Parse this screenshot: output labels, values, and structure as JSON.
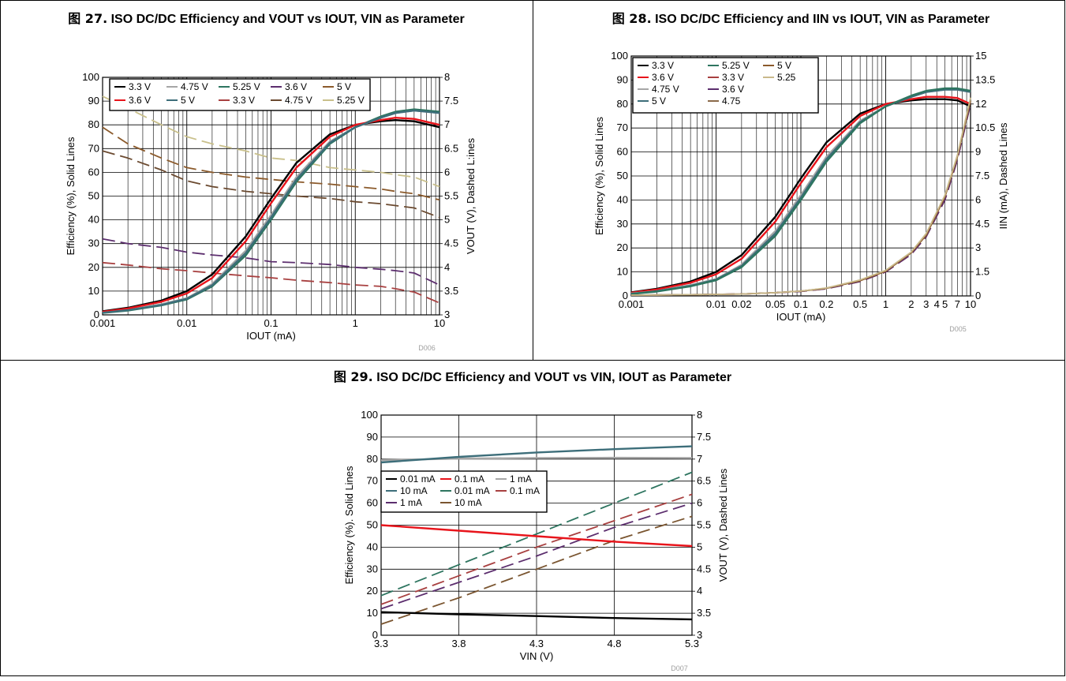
{
  "figures": [
    {
      "caption_prefix": "图 27.",
      "title": "ISO DC/DC Efficiency and VOUT vs IOUT, VIN as Parameter"
    },
    {
      "caption_prefix": "图 28.",
      "title": "ISO DC/DC Efficiency and IIN vs IOUT, VIN as Parameter"
    },
    {
      "caption_prefix": "图 29.",
      "title": "ISO DC/DC Efficiency and VOUT vs VIN, IOUT as Parameter"
    }
  ],
  "chart_data": [
    {
      "type": "line",
      "title": "ISO DC/DC Efficiency and VOUT vs IOUT, VIN as Parameter",
      "xlabel": "IOUT (mA)",
      "ylabel": "Efficiency (%), Solid Lines",
      "y2label": "VOUT (V), Dashed L:ines",
      "x_scale": "log",
      "xlim": [
        0.001,
        10
      ],
      "ylim": [
        0,
        100
      ],
      "y2lim": [
        3,
        8
      ],
      "x_ticks": [
        0.001,
        0.01,
        0.1,
        1,
        10
      ],
      "x_tick_labels": [
        "0.001",
        "0.01",
        "0.1",
        "1",
        "10"
      ],
      "y_ticks": [
        0,
        10,
        20,
        30,
        40,
        50,
        60,
        70,
        80,
        90,
        100
      ],
      "y_tick_labels": [
        "0",
        "10",
        "20",
        "30",
        "40",
        "50",
        "60",
        "70",
        "80",
        "90",
        "100"
      ],
      "y2_ticks": [
        3,
        3.5,
        4,
        4.5,
        5,
        5.5,
        6,
        6.5,
        7,
        7.5,
        8
      ],
      "y2_tick_labels": [
        "3",
        "3.5",
        "4",
        "4.5",
        "5",
        "5.5",
        "6",
        "6.5",
        "7",
        "7.5",
        "8"
      ],
      "grid": true,
      "legend_position": "top-left",
      "code_label": "D006",
      "x": [
        0.001,
        0.002,
        0.005,
        0.01,
        0.02,
        0.05,
        0.1,
        0.2,
        0.5,
        1,
        2,
        3,
        5,
        10
      ],
      "series": [
        {
          "name": "3.3 V",
          "axis": "left",
          "style": "solid",
          "color": "#000000",
          "values": [
            1.5,
            3,
            6,
            10,
            17,
            33,
            49,
            64,
            76,
            80,
            81.5,
            82,
            81.5,
            79
          ]
        },
        {
          "name": "4.75 V",
          "axis": "left",
          "style": "solid",
          "color": "#a6a6a6",
          "values": [
            1,
            2,
            4.5,
            7,
            13,
            27,
            42,
            58,
            73,
            79,
            83,
            85,
            86,
            85
          ]
        },
        {
          "name": "5.25 V",
          "axis": "left",
          "style": "solid",
          "color": "#2e7560",
          "values": [
            0.8,
            1.8,
            4,
            6.5,
            12,
            25,
            40,
            56,
            72,
            79,
            83.5,
            85.5,
            86.5,
            85.5
          ]
        },
        {
          "name": "3.6 V",
          "axis": "right",
          "style": "dashed",
          "color": "#5c2e6e",
          "values": [
            4.6,
            4.5,
            4.42,
            4.32,
            4.26,
            4.2,
            4.12,
            4.1,
            4.06,
            4.0,
            3.96,
            3.93,
            3.88,
            3.63
          ]
        },
        {
          "name": "5 V",
          "axis": "right",
          "style": "dashed",
          "color": "#8b5a2b",
          "values": [
            6.95,
            6.6,
            6.3,
            6.1,
            6.0,
            5.9,
            5.85,
            5.8,
            5.75,
            5.7,
            5.65,
            5.6,
            5.55,
            5.42
          ]
        },
        {
          "name": "3.6 V",
          "axis": "left",
          "style": "solid",
          "color": "#e8141b",
          "values": [
            1.3,
            2.7,
            5.5,
            9,
            15.5,
            31,
            47,
            62,
            75,
            80,
            82,
            83,
            82.5,
            80
          ]
        },
        {
          "name": "5 V",
          "axis": "left",
          "style": "solid",
          "color": "#3d6e7a",
          "values": [
            0.9,
            2,
            4.2,
            6.8,
            12.5,
            26,
            41,
            57,
            72.5,
            79,
            83,
            85,
            86,
            85
          ]
        },
        {
          "name": "3.3 V",
          "axis": "right",
          "style": "dashed",
          "color": "#a84040",
          "values": [
            4.1,
            4.05,
            3.97,
            3.93,
            3.88,
            3.82,
            3.78,
            3.73,
            3.68,
            3.63,
            3.6,
            3.55,
            3.48,
            3.25
          ]
        },
        {
          "name": "4.75 V",
          "axis": "right",
          "style": "dashed",
          "color": "#6b4a30",
          "values": [
            6.45,
            6.3,
            6.05,
            5.82,
            5.7,
            5.6,
            5.55,
            5.5,
            5.45,
            5.38,
            5.34,
            5.3,
            5.25,
            5.05
          ]
        },
        {
          "name": "5.25 V",
          "axis": "right",
          "style": "dashed",
          "color": "#c9c08b",
          "values": [
            7.6,
            7.35,
            7.0,
            6.75,
            6.6,
            6.45,
            6.3,
            6.25,
            6.1,
            6.05,
            6.0,
            5.95,
            5.9,
            5.7
          ]
        }
      ]
    },
    {
      "type": "line",
      "title": "ISO DC/DC Efficiency and IIN vs IOUT, VIN as Parameter",
      "xlabel": "IOUT (mA)",
      "ylabel": "Efficiency (%), Solid Lines",
      "y2label": "IIN (mA), Dashed Lines",
      "x_scale": "log",
      "xlim": [
        0.001,
        10
      ],
      "ylim": [
        0,
        100
      ],
      "y2lim": [
        0,
        15
      ],
      "x_ticks": [
        0.001,
        0.01,
        0.02,
        0.05,
        0.1,
        0.2,
        0.5,
        1,
        2,
        3,
        4,
        5,
        7,
        10
      ],
      "x_tick_labels": [
        "0.001",
        "0.01",
        "0.02",
        "0.05",
        "0.1",
        "0.2",
        "0.5",
        "1",
        "2",
        "3",
        "4",
        "5",
        "7",
        "10"
      ],
      "y_ticks": [
        0,
        10,
        20,
        30,
        40,
        50,
        60,
        70,
        80,
        90,
        100
      ],
      "y_tick_labels": [
        "0",
        "10",
        "20",
        "30",
        "40",
        "50",
        "60",
        "70",
        "80",
        "90",
        "100"
      ],
      "y2_ticks": [
        0,
        1.5,
        3,
        4.5,
        6,
        7.5,
        9,
        10.5,
        12,
        13.5,
        15
      ],
      "y2_tick_labels": [
        "0",
        "1.5",
        "3",
        "4.5",
        "6",
        "7.5",
        "9",
        "10.5",
        "12",
        "13.5",
        "15"
      ],
      "grid": true,
      "legend_position": "top-left",
      "code_label": "D005",
      "x": [
        0.001,
        0.002,
        0.005,
        0.01,
        0.02,
        0.05,
        0.1,
        0.2,
        0.5,
        1,
        2,
        3,
        5,
        7,
        10
      ],
      "series": [
        {
          "name": "3.3 V",
          "axis": "left",
          "style": "solid",
          "color": "#000000",
          "values": [
            1.5,
            3,
            6,
            10,
            17,
            33,
            49,
            64,
            76,
            80,
            81.5,
            82,
            82,
            81.5,
            79
          ]
        },
        {
          "name": "3.6 V",
          "axis": "left",
          "style": "solid",
          "color": "#e8141b",
          "values": [
            1.3,
            2.7,
            5.5,
            9,
            15.5,
            31,
            47,
            62,
            75,
            80,
            82,
            83,
            83,
            82.5,
            80
          ]
        },
        {
          "name": "4.75 V",
          "axis": "left",
          "style": "solid",
          "color": "#a6a6a6",
          "values": [
            1,
            2,
            4.5,
            7,
            13,
            27,
            42,
            58,
            73,
            79,
            83,
            85,
            86,
            86,
            85
          ]
        },
        {
          "name": "5 V",
          "axis": "left",
          "style": "solid",
          "color": "#3d6e7a",
          "values": [
            0.9,
            2,
            4.2,
            6.8,
            12.5,
            26,
            41,
            57,
            72.5,
            79,
            83,
            85,
            86,
            86,
            85
          ]
        },
        {
          "name": "5.25 V",
          "axis": "left",
          "style": "solid",
          "color": "#2e7560",
          "values": [
            0.8,
            1.8,
            4,
            6.5,
            12,
            25,
            40,
            56,
            72,
            79,
            83.5,
            85.5,
            86.5,
            86.5,
            85.5
          ]
        },
        {
          "name": "3.3 V",
          "axis": "right",
          "style": "dashed",
          "color": "#a84040",
          "values": [
            0.05,
            0.06,
            0.08,
            0.1,
            0.12,
            0.2,
            0.28,
            0.45,
            0.9,
            1.5,
            2.6,
            3.7,
            6.0,
            8.5,
            12.0
          ]
        },
        {
          "name": "3.6 V",
          "axis": "right",
          "style": "dashed",
          "color": "#5c2e6e",
          "values": [
            0.05,
            0.06,
            0.08,
            0.1,
            0.12,
            0.2,
            0.28,
            0.45,
            0.9,
            1.5,
            2.6,
            3.7,
            6.0,
            8.5,
            12.0
          ]
        },
        {
          "name": "4.75",
          "axis": "right",
          "style": "solid",
          "color": "#8b6a4a",
          "values": [
            0.05,
            0.06,
            0.08,
            0.1,
            0.12,
            0.2,
            0.3,
            0.48,
            0.95,
            1.55,
            2.7,
            3.8,
            6.2,
            8.7,
            12.2
          ]
        },
        {
          "name": "5 V",
          "axis": "right",
          "style": "solid",
          "color": "#8b5a2b",
          "values": [
            0.05,
            0.06,
            0.08,
            0.1,
            0.12,
            0.2,
            0.3,
            0.48,
            0.95,
            1.55,
            2.7,
            3.8,
            6.2,
            8.7,
            12.2
          ]
        },
        {
          "name": "5.25",
          "axis": "right",
          "style": "solid",
          "color": "#c9b98b",
          "values": [
            0.05,
            0.06,
            0.08,
            0.1,
            0.12,
            0.2,
            0.3,
            0.5,
            1.0,
            1.6,
            2.75,
            3.9,
            6.3,
            8.8,
            12.4
          ]
        }
      ],
      "legend_order": [
        [
          "3.3 V",
          "#000000",
          "solid"
        ],
        [
          "5.25 V",
          "#2e7560",
          "solid"
        ],
        [
          "5 V",
          "#8b5a2b",
          "solid"
        ],
        [
          "3.6 V",
          "#e8141b",
          "solid"
        ],
        [
          "3.3 V",
          "#a84040",
          "solid"
        ],
        [
          "5.25",
          "#c9b98b",
          "solid"
        ],
        [
          "4.75 V",
          "#a6a6a6",
          "solid"
        ],
        [
          "3.6 V",
          "#5c2e6e",
          "solid"
        ],
        [
          "",
          "",
          ""
        ],
        [
          "5 V",
          "#3d6e7a",
          "solid"
        ],
        [
          "4.75",
          "#8b6a4a",
          "solid"
        ],
        [
          "",
          "",
          ""
        ]
      ]
    },
    {
      "type": "line",
      "title": "ISO DC/DC Efficiency and VOUT vs VIN, IOUT as Parameter",
      "xlabel": "VIN (V)",
      "ylabel": "Efficiency (%). Solid Lines",
      "y2label": "VOUT (V), Dashed Lines",
      "x_scale": "linear",
      "xlim": [
        3.3,
        5.3
      ],
      "ylim": [
        0,
        100
      ],
      "y2lim": [
        3,
        8
      ],
      "x_ticks": [
        3.3,
        3.8,
        4.3,
        4.8,
        5.3
      ],
      "x_tick_labels": [
        "3.3",
        "3.8",
        "4.3",
        "4.8",
        "5.3"
      ],
      "y_ticks": [
        0,
        10,
        20,
        30,
        40,
        50,
        60,
        70,
        80,
        90,
        100
      ],
      "y_tick_labels": [
        "0",
        "10",
        "20",
        "30",
        "40",
        "50",
        "60",
        "70",
        "80",
        "90",
        "100"
      ],
      "y2_ticks": [
        3,
        3.5,
        4,
        4.5,
        5,
        5.5,
        6,
        6.5,
        7,
        7.5,
        8
      ],
      "y2_tick_labels": [
        "3",
        "3.5",
        "4",
        "4.5",
        "5",
        "5.5",
        "6",
        "6.5",
        "7",
        "7.5",
        "8"
      ],
      "grid": true,
      "legend_position": "center-left",
      "code_label": "D007",
      "x": [
        3.3,
        3.8,
        4.3,
        4.8,
        5.3
      ],
      "series": [
        {
          "name": "0.01 mA",
          "axis": "left",
          "style": "solid",
          "color": "#000000",
          "values": [
            10.5,
            9.5,
            8.7,
            7.8,
            7.2
          ]
        },
        {
          "name": "0.1 mA",
          "axis": "left",
          "style": "solid",
          "color": "#e8141b",
          "values": [
            50,
            47.5,
            45,
            42.5,
            40.5
          ]
        },
        {
          "name": "1 mA",
          "axis": "left",
          "style": "solid",
          "color": "#a6a6a6",
          "values": [
            79.5,
            80.2,
            80.5,
            80.6,
            80.5
          ]
        },
        {
          "name": "10 mA",
          "axis": "left",
          "style": "solid",
          "color": "#3d6e7a",
          "values": [
            78.5,
            81,
            83,
            84.5,
            85.8
          ]
        },
        {
          "name": "0.01 mA",
          "axis": "right",
          "style": "dashed",
          "color": "#2e7560",
          "values": [
            3.9,
            4.6,
            5.3,
            6.0,
            6.7
          ]
        },
        {
          "name": "0.1 mA",
          "axis": "right",
          "style": "dashed",
          "color": "#a84040",
          "values": [
            3.7,
            4.35,
            5.0,
            5.6,
            6.2
          ]
        },
        {
          "name": "1 mA",
          "axis": "right",
          "style": "dashed",
          "color": "#5c2e6e",
          "values": [
            3.6,
            4.2,
            4.8,
            5.45,
            6.0
          ]
        },
        {
          "name": "10 mA",
          "axis": "right",
          "style": "dashed",
          "color": "#7a5530",
          "values": [
            3.25,
            3.85,
            4.5,
            5.15,
            5.7
          ]
        }
      ]
    }
  ]
}
